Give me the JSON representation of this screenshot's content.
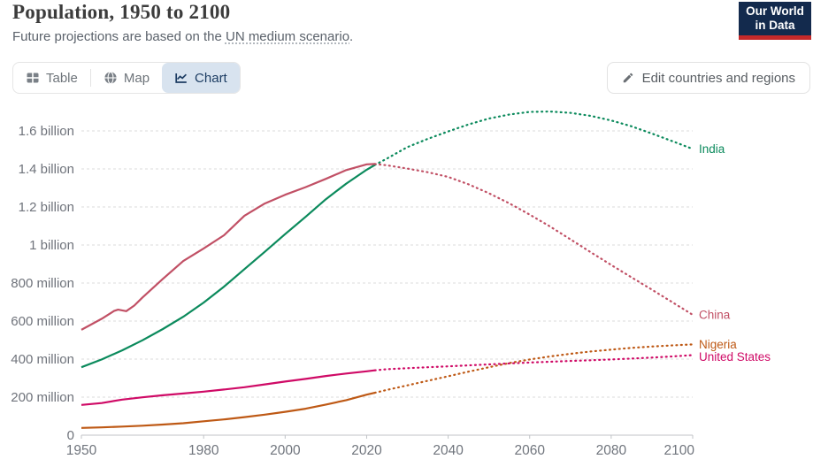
{
  "header": {
    "title": "Population, 1950 to 2100",
    "subtitle_prefix": "Future projections are based on the ",
    "subtitle_link": "UN medium scenario",
    "subtitle_suffix": ".",
    "logo_line1": "Our World",
    "logo_line2": "in Data",
    "logo_bg_color": "#132A4D",
    "logo_bar_color": "#C5292A"
  },
  "toolbar": {
    "tabs": [
      {
        "label": "Table",
        "active": false
      },
      {
        "label": "Map",
        "active": false
      },
      {
        "label": "Chart",
        "active": true
      }
    ],
    "edit_button_label": "Edit countries and regions"
  },
  "chart_data": {
    "type": "line",
    "title": "Population, 1950 to 2100",
    "units": "millions of people",
    "xlim": [
      1950,
      2100
    ],
    "ylim": [
      0,
      1730
    ],
    "x_ticks": [
      1950,
      1980,
      2000,
      2020,
      2040,
      2060,
      2080,
      2100
    ],
    "y_ticks": [
      {
        "value": 0,
        "label": "0"
      },
      {
        "value": 200,
        "label": "200 million"
      },
      {
        "value": 400,
        "label": "400 million"
      },
      {
        "value": 600,
        "label": "600 million"
      },
      {
        "value": 800,
        "label": "800 million"
      },
      {
        "value": 1000,
        "label": "1 billion"
      },
      {
        "value": 1200,
        "label": "1.2 billion"
      },
      {
        "value": 1400,
        "label": "1.4 billion"
      },
      {
        "value": 1600,
        "label": "1.6 billion"
      }
    ],
    "grid": "horizontal-dashed",
    "legend_position": "labels-at-line-ends",
    "projection_start_year": 2022,
    "projection_style": "dotted",
    "series": [
      {
        "name": "India",
        "color": "#0B8A5C",
        "history": [
          [
            1950,
            357
          ],
          [
            1955,
            398
          ],
          [
            1960,
            446
          ],
          [
            1965,
            499
          ],
          [
            1970,
            558
          ],
          [
            1975,
            623
          ],
          [
            1980,
            697
          ],
          [
            1985,
            781
          ],
          [
            1990,
            873
          ],
          [
            1995,
            964
          ],
          [
            2000,
            1057
          ],
          [
            2005,
            1148
          ],
          [
            2010,
            1241
          ],
          [
            2015,
            1323
          ],
          [
            2020,
            1396
          ],
          [
            2022,
            1421
          ]
        ],
        "projection": [
          [
            2022,
            1421
          ],
          [
            2025,
            1455
          ],
          [
            2030,
            1515
          ],
          [
            2035,
            1558
          ],
          [
            2040,
            1597
          ],
          [
            2045,
            1634
          ],
          [
            2050,
            1665
          ],
          [
            2055,
            1686
          ],
          [
            2060,
            1700
          ],
          [
            2065,
            1702
          ],
          [
            2070,
            1695
          ],
          [
            2075,
            1679
          ],
          [
            2080,
            1655
          ],
          [
            2085,
            1624
          ],
          [
            2090,
            1586
          ],
          [
            2095,
            1546
          ],
          [
            2100,
            1505
          ]
        ]
      },
      {
        "name": "China",
        "color": "#C15065",
        "history": [
          [
            1950,
            554
          ],
          [
            1955,
            612
          ],
          [
            1958,
            653
          ],
          [
            1959,
            660
          ],
          [
            1961,
            652
          ],
          [
            1963,
            682
          ],
          [
            1965,
            724
          ],
          [
            1970,
            822
          ],
          [
            1975,
            916
          ],
          [
            1980,
            982
          ],
          [
            1985,
            1051
          ],
          [
            1990,
            1154
          ],
          [
            1995,
            1218
          ],
          [
            2000,
            1264
          ],
          [
            2005,
            1304
          ],
          [
            2010,
            1348
          ],
          [
            2015,
            1394
          ],
          [
            2020,
            1424
          ],
          [
            2022,
            1426
          ]
        ],
        "projection": [
          [
            2022,
            1426
          ],
          [
            2025,
            1419
          ],
          [
            2030,
            1402
          ],
          [
            2035,
            1383
          ],
          [
            2040,
            1358
          ],
          [
            2045,
            1319
          ],
          [
            2050,
            1272
          ],
          [
            2055,
            1219
          ],
          [
            2060,
            1160
          ],
          [
            2065,
            1097
          ],
          [
            2070,
            1030
          ],
          [
            2075,
            962
          ],
          [
            2080,
            895
          ],
          [
            2085,
            830
          ],
          [
            2090,
            765
          ],
          [
            2095,
            699
          ],
          [
            2100,
            633
          ]
        ]
      },
      {
        "name": "Nigeria",
        "color": "#BE5915",
        "history": [
          [
            1950,
            38
          ],
          [
            1955,
            41
          ],
          [
            1960,
            45
          ],
          [
            1965,
            50
          ],
          [
            1970,
            56
          ],
          [
            1975,
            63
          ],
          [
            1980,
            73
          ],
          [
            1985,
            83
          ],
          [
            1990,
            95
          ],
          [
            1995,
            108
          ],
          [
            2000,
            123
          ],
          [
            2005,
            139
          ],
          [
            2010,
            161
          ],
          [
            2015,
            184
          ],
          [
            2020,
            213
          ],
          [
            2022,
            223
          ]
        ],
        "projection": [
          [
            2022,
            223
          ],
          [
            2025,
            238
          ],
          [
            2030,
            262
          ],
          [
            2035,
            286
          ],
          [
            2040,
            310
          ],
          [
            2045,
            334
          ],
          [
            2050,
            357
          ],
          [
            2055,
            379
          ],
          [
            2060,
            398
          ],
          [
            2065,
            414
          ],
          [
            2070,
            428
          ],
          [
            2075,
            440
          ],
          [
            2080,
            450
          ],
          [
            2085,
            459
          ],
          [
            2090,
            466
          ],
          [
            2095,
            472
          ],
          [
            2100,
            477
          ]
        ]
      },
      {
        "name": "United States",
        "color": "#CF0A66",
        "history": [
          [
            1950,
            159
          ],
          [
            1955,
            169
          ],
          [
            1960,
            187
          ],
          [
            1965,
            199
          ],
          [
            1970,
            210
          ],
          [
            1975,
            219
          ],
          [
            1980,
            229
          ],
          [
            1985,
            240
          ],
          [
            1990,
            252
          ],
          [
            1995,
            267
          ],
          [
            2000,
            282
          ],
          [
            2005,
            296
          ],
          [
            2010,
            311
          ],
          [
            2015,
            324
          ],
          [
            2020,
            336
          ],
          [
            2022,
            341
          ]
        ],
        "projection": [
          [
            2022,
            341
          ],
          [
            2025,
            347
          ],
          [
            2030,
            352
          ],
          [
            2035,
            357
          ],
          [
            2040,
            362
          ],
          [
            2045,
            367
          ],
          [
            2050,
            372
          ],
          [
            2055,
            377
          ],
          [
            2060,
            382
          ],
          [
            2065,
            386
          ],
          [
            2070,
            390
          ],
          [
            2075,
            394
          ],
          [
            2080,
            398
          ],
          [
            2085,
            403
          ],
          [
            2090,
            408
          ],
          [
            2095,
            414
          ],
          [
            2100,
            421
          ]
        ]
      }
    ]
  }
}
